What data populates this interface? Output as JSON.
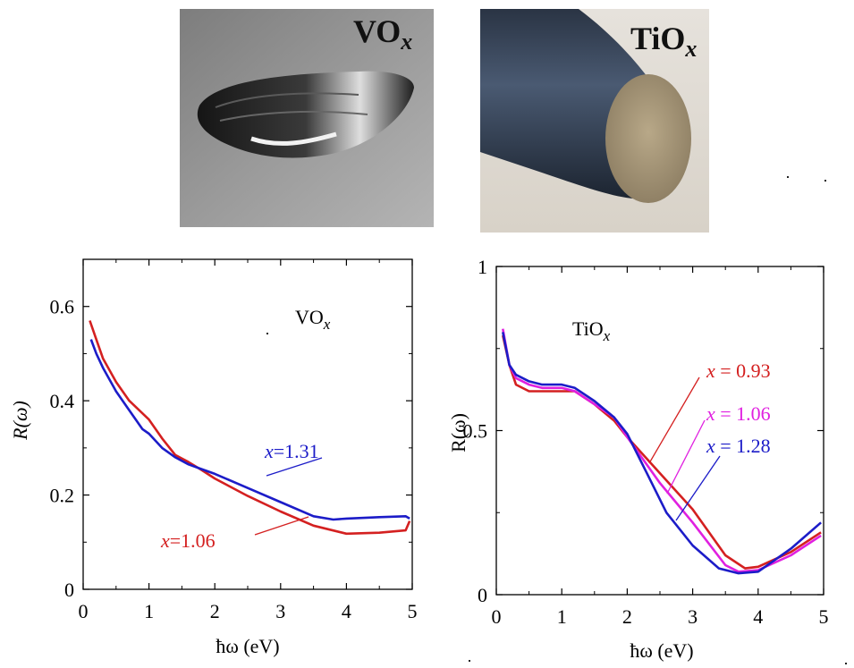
{
  "photos": [
    {
      "label_main": "VO",
      "label_sub": "x",
      "icon": "vox-crystal-photo"
    },
    {
      "label_main": "TiO",
      "label_sub": "x",
      "icon": "tiox-rod-photo"
    }
  ],
  "chart_data": [
    {
      "type": "line",
      "title_main": "VO",
      "title_sub": "x",
      "xlabel": "ħω (eV)",
      "ylabel": "R(ω)",
      "xlim": [
        0,
        5
      ],
      "ylim": [
        0,
        0.7
      ],
      "xticks": [
        0,
        1,
        2,
        3,
        4,
        5
      ],
      "yticks": [
        0,
        0.2,
        0.4,
        0.6
      ],
      "ytick_labels": [
        "0",
        "0.2",
        "0.4",
        "0.6"
      ],
      "grid": false,
      "series": [
        {
          "name": "x=1.06",
          "label_var": "x",
          "label_val": "=1.06",
          "color": "#d42020",
          "x": [
            0.1,
            0.2,
            0.3,
            0.5,
            0.7,
            1.0,
            1.2,
            1.4,
            1.6,
            1.8,
            2.0,
            2.5,
            3.0,
            3.5,
            4.0,
            4.5,
            4.9,
            4.96
          ],
          "y": [
            0.57,
            0.53,
            0.49,
            0.44,
            0.4,
            0.36,
            0.32,
            0.285,
            0.27,
            0.253,
            0.235,
            0.198,
            0.165,
            0.135,
            0.118,
            0.12,
            0.125,
            0.145
          ]
        },
        {
          "name": "x=1.31",
          "label_var": "x",
          "label_val": "=1.31",
          "color": "#1c1cc8",
          "x": [
            0.12,
            0.2,
            0.3,
            0.5,
            0.7,
            0.9,
            1.0,
            1.2,
            1.4,
            1.6,
            1.8,
            2.0,
            2.5,
            3.0,
            3.5,
            3.8,
            4.0,
            4.5,
            4.9,
            4.96
          ],
          "y": [
            0.53,
            0.5,
            0.47,
            0.42,
            0.38,
            0.34,
            0.33,
            0.3,
            0.28,
            0.265,
            0.255,
            0.245,
            0.215,
            0.185,
            0.155,
            0.148,
            0.15,
            0.153,
            0.155,
            0.15
          ]
        }
      ]
    },
    {
      "type": "line",
      "title_main": "TiO",
      "title_sub": "x",
      "xlabel": "ħω (eV)",
      "ylabel": "R(ω)",
      "xlim": [
        0,
        5
      ],
      "ylim": [
        0,
        1
      ],
      "xticks": [
        0,
        1,
        2,
        3,
        4,
        5
      ],
      "yticks": [
        0,
        0.5,
        1
      ],
      "ytick_labels": [
        "0",
        "0.5",
        "1"
      ],
      "grid": false,
      "series": [
        {
          "name": "x = 0.93",
          "label_var": "x",
          "label_val": " = 0.93",
          "color": "#d42020",
          "x": [
            0.1,
            0.2,
            0.3,
            0.5,
            0.7,
            1.0,
            1.2,
            1.5,
            1.8,
            2.0,
            2.5,
            3.0,
            3.5,
            3.8,
            4.0,
            4.5,
            4.96
          ],
          "y": [
            0.79,
            0.7,
            0.64,
            0.62,
            0.62,
            0.62,
            0.62,
            0.58,
            0.53,
            0.48,
            0.37,
            0.26,
            0.12,
            0.08,
            0.085,
            0.13,
            0.19
          ]
        },
        {
          "name": "x = 1.06",
          "label_var": "x",
          "label_val": " = 1.06",
          "color": "#e020e0",
          "x": [
            0.1,
            0.2,
            0.3,
            0.5,
            0.7,
            1.0,
            1.2,
            1.5,
            1.8,
            2.0,
            2.5,
            3.0,
            3.5,
            3.7,
            4.0,
            4.5,
            4.96
          ],
          "y": [
            0.81,
            0.7,
            0.66,
            0.64,
            0.63,
            0.63,
            0.62,
            0.58,
            0.54,
            0.48,
            0.34,
            0.22,
            0.09,
            0.07,
            0.075,
            0.12,
            0.18
          ]
        },
        {
          "name": "x = 1.28",
          "label_var": "x",
          "label_val": " = 1.28",
          "color": "#1c1cc8",
          "x": [
            0.1,
            0.2,
            0.3,
            0.5,
            0.7,
            1.0,
            1.2,
            1.5,
            1.8,
            2.0,
            2.3,
            2.6,
            3.0,
            3.4,
            3.7,
            4.0,
            4.5,
            4.96
          ],
          "y": [
            0.8,
            0.7,
            0.67,
            0.65,
            0.64,
            0.64,
            0.63,
            0.59,
            0.54,
            0.49,
            0.37,
            0.25,
            0.15,
            0.08,
            0.065,
            0.07,
            0.14,
            0.22
          ]
        }
      ]
    }
  ]
}
